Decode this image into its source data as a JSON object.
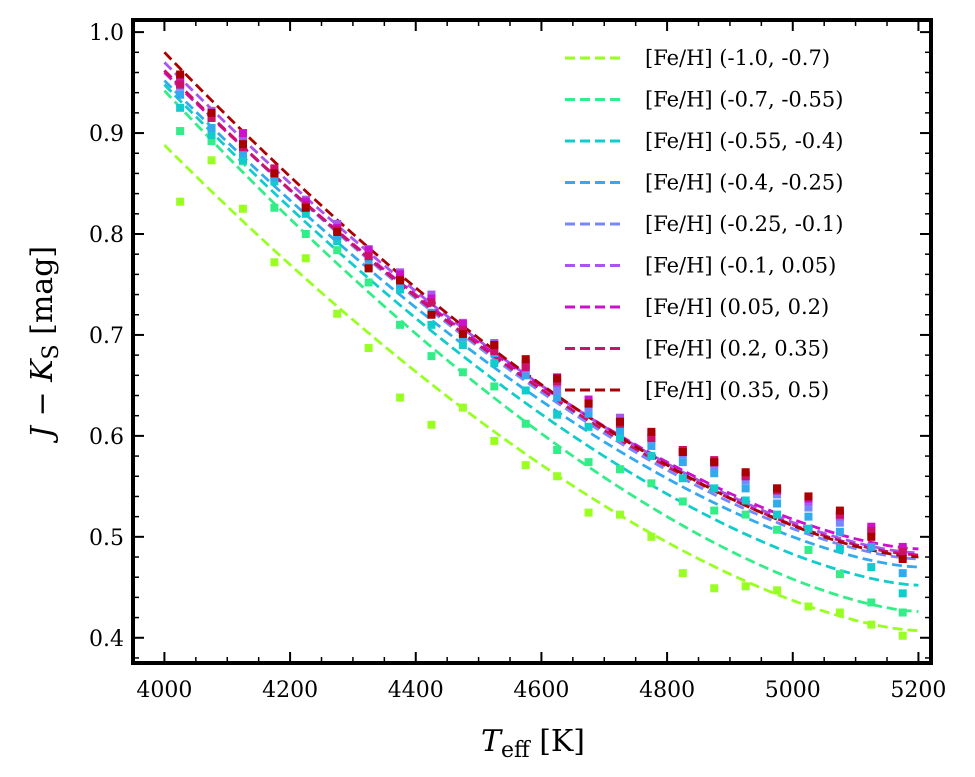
{
  "chart_data": {
    "type": "scatter",
    "title": "",
    "xlabel": {
      "main": "T",
      "sub": "eff",
      "rest": " [K]"
    },
    "ylabel": {
      "pre": "J − K",
      "sub": "S",
      "rest": " [mag]"
    },
    "xlim": [
      3950,
      5220
    ],
    "ylim": [
      0.375,
      1.012
    ],
    "xticks": [
      4000,
      4200,
      4400,
      4600,
      4800,
      5000,
      5200
    ],
    "xtick_labels": [
      "4000",
      "4200",
      "4400",
      "4600",
      "4800",
      "5000",
      "5200"
    ],
    "yticks": [
      0.4,
      0.5,
      0.6,
      0.7,
      0.8,
      0.9,
      1.0
    ],
    "ytick_labels": [
      "0.4",
      "0.5",
      "0.6",
      "0.7",
      "0.8",
      "0.9",
      "1.0"
    ],
    "legend_position": "top-right",
    "x": [
      4025,
      4075,
      4125,
      4175,
      4225,
      4275,
      4325,
      4375,
      4425,
      4475,
      4525,
      4575,
      4625,
      4675,
      4725,
      4775,
      4825,
      4875,
      4925,
      4975,
      5025,
      5075,
      5125,
      5175
    ],
    "fit_range": [
      4000,
      5200
    ],
    "series": [
      {
        "name": "[Fe/H] (-1.0, -0.7)",
        "color": "#99ff22",
        "points": [
          0.832,
          0.873,
          0.825,
          0.772,
          0.776,
          0.721,
          0.687,
          0.638,
          0.611,
          0.628,
          0.595,
          0.571,
          0.56,
          0.524,
          0.522,
          0.5,
          0.464,
          0.449,
          0.451,
          0.447,
          0.431,
          0.425,
          0.413,
          0.402
        ],
        "fit": [
          0.888,
          0.407
        ]
      },
      {
        "name": "[Fe/H] (-0.7, -0.55)",
        "color": "#33ee88",
        "points": [
          0.902,
          0.892,
          0.872,
          0.826,
          0.8,
          0.784,
          0.752,
          0.71,
          0.679,
          0.663,
          0.649,
          0.612,
          0.586,
          0.574,
          0.567,
          0.553,
          0.535,
          0.526,
          0.522,
          0.507,
          0.487,
          0.463,
          0.435,
          0.425
        ],
        "fit": [
          0.942,
          0.426
        ]
      },
      {
        "name": "[Fe/H] (-0.55, -0.4)",
        "color": "#11cccc",
        "points": [
          0.925,
          0.898,
          0.873,
          0.852,
          0.82,
          0.793,
          0.766,
          0.745,
          0.71,
          0.69,
          0.672,
          0.645,
          0.621,
          0.609,
          0.598,
          0.58,
          0.558,
          0.548,
          0.536,
          0.522,
          0.508,
          0.488,
          0.47,
          0.444
        ],
        "fit": [
          0.948,
          0.452
        ]
      },
      {
        "name": "[Fe/H] (-0.4, -0.25)",
        "color": "#33aaee",
        "points": [
          0.938,
          0.905,
          0.88,
          0.856,
          0.826,
          0.798,
          0.772,
          0.75,
          0.722,
          0.698,
          0.682,
          0.66,
          0.638,
          0.622,
          0.605,
          0.59,
          0.574,
          0.563,
          0.548,
          0.533,
          0.52,
          0.505,
          0.49,
          0.464
        ],
        "fit": [
          0.952,
          0.47
        ]
      },
      {
        "name": "[Fe/H] (-0.25, -0.1)",
        "color": "#7788ff",
        "points": [
          0.946,
          0.915,
          0.888,
          0.86,
          0.83,
          0.805,
          0.78,
          0.756,
          0.735,
          0.708,
          0.688,
          0.666,
          0.645,
          0.628,
          0.612,
          0.596,
          0.582,
          0.57,
          0.556,
          0.542,
          0.529,
          0.514,
          0.502,
          0.48
        ],
        "fit": [
          0.962,
          0.478
        ]
      },
      {
        "name": "[Fe/H] (-0.1, 0.05)",
        "color": "#aa55ee",
        "points": [
          0.955,
          0.922,
          0.896,
          0.864,
          0.834,
          0.81,
          0.785,
          0.762,
          0.74,
          0.712,
          0.692,
          0.672,
          0.652,
          0.634,
          0.618,
          0.602,
          0.586,
          0.573,
          0.56,
          0.546,
          0.535,
          0.52,
          0.508,
          0.488
        ],
        "fit": [
          0.97,
          0.484
        ]
      },
      {
        "name": "[Fe/H] (0.05, 0.2)",
        "color": "#cc11cc",
        "points": [
          0.95,
          0.918,
          0.9,
          0.862,
          0.832,
          0.806,
          0.784,
          0.76,
          0.736,
          0.711,
          0.69,
          0.67,
          0.658,
          0.636,
          0.614,
          0.598,
          0.584,
          0.574,
          0.562,
          0.548,
          0.538,
          0.522,
          0.51,
          0.49
        ],
        "fit": [
          0.96,
          0.488
        ]
      },
      {
        "name": "[Fe/H] (0.2, 0.35)",
        "color": "#cc1166",
        "points": [
          0.948,
          0.915,
          0.886,
          0.865,
          0.828,
          0.804,
          0.778,
          0.755,
          0.732,
          0.705,
          0.684,
          0.668,
          0.654,
          0.632,
          0.612,
          0.598,
          0.586,
          0.576,
          0.56,
          0.546,
          0.54,
          0.522,
          0.506,
          0.485
        ],
        "fit": [
          0.962,
          0.482
        ]
      },
      {
        "name": "[Fe/H] (0.35, 0.5)",
        "color": "#aa0000",
        "points": [
          0.958,
          0.92,
          0.889,
          0.86,
          0.826,
          0.802,
          0.766,
          0.754,
          0.72,
          0.701,
          0.69,
          0.676,
          0.657,
          0.632,
          0.614,
          0.604,
          0.584,
          0.574,
          0.564,
          0.548,
          0.54,
          0.526,
          0.5,
          0.478
        ],
        "fit": [
          0.98,
          0.48
        ]
      }
    ]
  }
}
